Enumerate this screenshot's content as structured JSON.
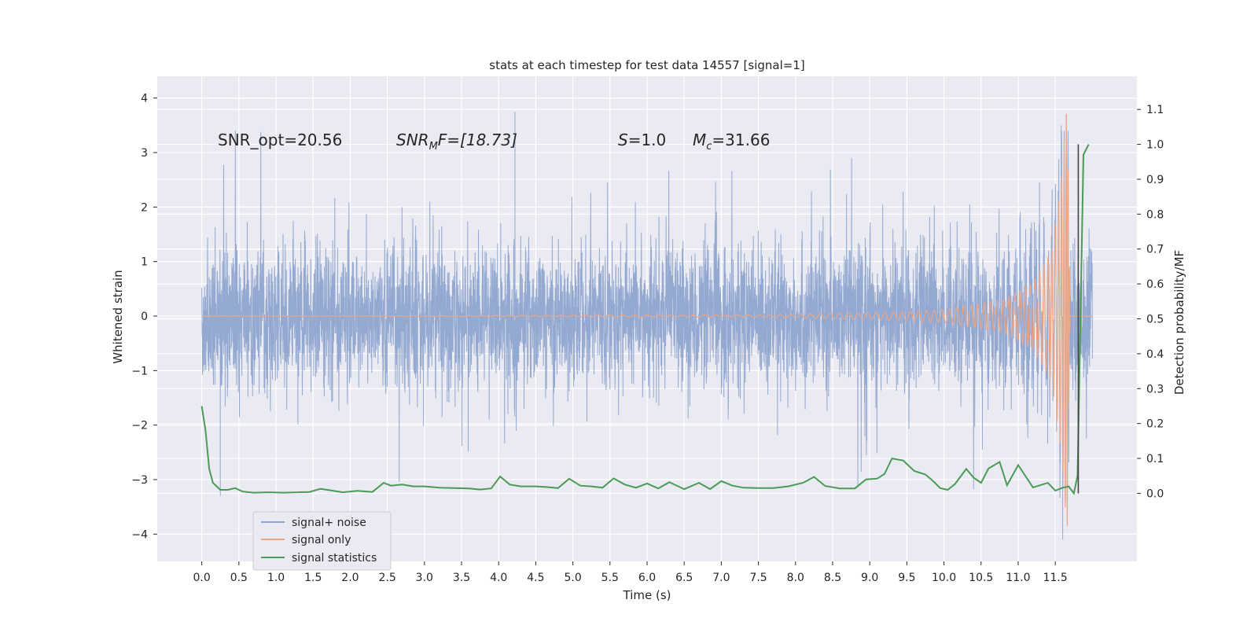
{
  "chart_data": {
    "type": "line",
    "title": "stats at each timestep for test data 14557 [signal=1]",
    "xlabel": "Time (s)",
    "ylabel": "Whitened strain",
    "y2label": "Detection probability/MF",
    "xlim": [
      -0.6,
      12.6
    ],
    "ylim": [
      -4.5,
      4.4
    ],
    "y2lim": [
      -0.195,
      1.195
    ],
    "x_ticks": [
      "0.0",
      "0.5",
      "1.0",
      "1.5",
      "2.0",
      "2.5",
      "3.0",
      "3.5",
      "4.0",
      "4.5",
      "5.0",
      "5.5",
      "6.0",
      "6.5",
      "7.0",
      "7.5",
      "8.0",
      "8.5",
      "9.0",
      "9.5",
      "10.0",
      "10.5",
      "11.0",
      "11.5"
    ],
    "y_ticks": [
      "4",
      "3",
      "2",
      "1",
      "0",
      "−1",
      "−2",
      "−3",
      "−4"
    ],
    "y2_ticks": [
      "1.1",
      "1.0",
      "0.9",
      "0.8",
      "0.7",
      "0.6",
      "0.5",
      "0.4",
      "0.3",
      "0.2",
      "0.1",
      "0.0"
    ],
    "grid": true,
    "legend_position": "lower-left",
    "annotations": {
      "snr_opt": "SNR_opt=20.56",
      "snr_mf_base": "SNR",
      "snr_mf_sub": "M",
      "snr_mf_rest": "F=[18.73]",
      "s_var": "S",
      "s_val": "=1.0",
      "mc_var": "M",
      "mc_sub": "c",
      "mc_val": "=31.66"
    },
    "series": [
      {
        "name": "signal+ noise",
        "color": "#8fa5cf",
        "axis": "left",
        "x_range": [
          0.0,
          12.0
        ],
        "typical_envelope": [
          -1.9,
          2.0
        ],
        "peak_values": [
          {
            "x": 0.25,
            "y": -3.3
          },
          {
            "x": 4.22,
            "y": 3.75
          },
          {
            "x": 11.58,
            "y": 3.5
          },
          {
            "x": 11.6,
            "y": -4.1
          }
        ]
      },
      {
        "name": "signal only",
        "color": "#e9a688",
        "axis": "left",
        "description_points": [
          {
            "x": 0.0,
            "amplitude": 0.0
          },
          {
            "x": 7.5,
            "amplitude": 0.02
          },
          {
            "x": 9.0,
            "amplitude": 0.06
          },
          {
            "x": 10.0,
            "amplitude": 0.12
          },
          {
            "x": 10.8,
            "amplitude": 0.3
          },
          {
            "x": 11.2,
            "amplitude": 0.6
          },
          {
            "x": 11.45,
            "amplitude": 1.2
          },
          {
            "x": 11.58,
            "amplitude": 2.5
          },
          {
            "x": 11.66,
            "amplitude": 4.0
          },
          {
            "x": 11.7,
            "amplitude": 0.0
          }
        ]
      },
      {
        "name": "signal statistics",
        "color": "#4c9a57",
        "axis": "right",
        "x": [
          0.0,
          0.05,
          0.1,
          0.15,
          0.25,
          0.35,
          0.45,
          0.55,
          0.7,
          0.9,
          1.1,
          1.3,
          1.45,
          1.6,
          1.75,
          1.9,
          2.1,
          2.3,
          2.45,
          2.55,
          2.7,
          2.85,
          3.0,
          3.2,
          3.4,
          3.6,
          3.75,
          3.9,
          4.02,
          4.15,
          4.3,
          4.5,
          4.65,
          4.8,
          4.95,
          5.1,
          5.25,
          5.4,
          5.55,
          5.7,
          5.85,
          6.0,
          6.15,
          6.3,
          6.5,
          6.7,
          6.85,
          7.0,
          7.15,
          7.3,
          7.5,
          7.7,
          7.9,
          8.1,
          8.25,
          8.4,
          8.6,
          8.8,
          8.95,
          9.1,
          9.2,
          9.3,
          9.45,
          9.6,
          9.75,
          9.85,
          9.95,
          10.05,
          10.15,
          10.3,
          10.4,
          10.5,
          10.6,
          10.75,
          10.85,
          11.0,
          11.2,
          11.4,
          11.5,
          11.6,
          11.68,
          11.75,
          11.8,
          11.88,
          11.95
        ],
        "y": [
          0.25,
          0.18,
          0.07,
          0.03,
          0.01,
          0.01,
          0.015,
          0.005,
          0.002,
          0.003,
          0.002,
          0.003,
          0.004,
          0.013,
          0.008,
          0.003,
          0.007,
          0.004,
          0.03,
          0.022,
          0.025,
          0.02,
          0.02,
          0.016,
          0.015,
          0.014,
          0.011,
          0.014,
          0.048,
          0.025,
          0.02,
          0.02,
          0.018,
          0.015,
          0.042,
          0.022,
          0.02,
          0.016,
          0.043,
          0.025,
          0.016,
          0.028,
          0.014,
          0.032,
          0.012,
          0.03,
          0.012,
          0.035,
          0.022,
          0.016,
          0.015,
          0.015,
          0.02,
          0.03,
          0.047,
          0.021,
          0.014,
          0.014,
          0.04,
          0.042,
          0.056,
          0.1,
          0.094,
          0.064,
          0.054,
          0.036,
          0.015,
          0.01,
          0.027,
          0.07,
          0.045,
          0.03,
          0.071,
          0.09,
          0.023,
          0.081,
          0.017,
          0.03,
          0.008,
          0.016,
          0.02,
          0.0,
          0.05,
          0.97,
          1.0
        ]
      }
    ],
    "vertical_line": {
      "x": 11.81,
      "y2_range": [
        0.0,
        1.0
      ],
      "color": "#444444"
    }
  },
  "legend": {
    "items": [
      "signal+ noise",
      "signal only",
      "signal statistics"
    ]
  }
}
